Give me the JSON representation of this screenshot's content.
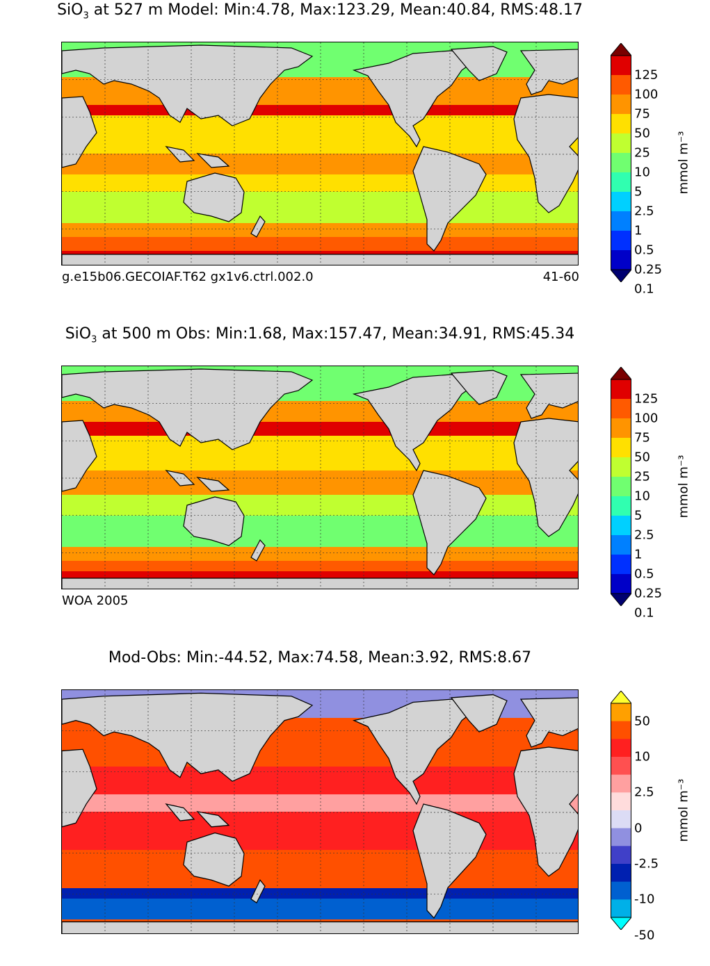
{
  "chart_data": [
    {
      "type": "heatmap",
      "title": "SiO3 at 527 m Model: Min:4.78, Max:123.29, Mean:40.84, RMS:48.17",
      "title_parts": {
        "pre": "SiO",
        "sub": "3",
        "post": " at 527 m Model: Min:4.78, Max:123.29, Mean:40.84, RMS:48.17"
      },
      "footer_left": "g.e15b06.GECOIAF.T62 gx1v6.ctrl.002.0",
      "footer_right": "41-60",
      "colorbar": {
        "label": "mmol m⁻³",
        "ticks": [
          "125",
          "100",
          "75",
          "50",
          "25",
          "10",
          "5",
          "2.5",
          "1",
          "0.5",
          "0.25",
          "0.1"
        ],
        "colors": [
          "#7a0000",
          "#e00000",
          "#ff5a00",
          "#ff9400",
          "#ffe000",
          "#c0ff30",
          "#70ff70",
          "#30ffb0",
          "#00d0ff",
          "#0080ff",
          "#0030ff",
          "#0000c8",
          "#000070"
        ]
      }
    },
    {
      "type": "heatmap",
      "title": "SiO3 at 500 m Obs: Min:1.68, Max:157.47, Mean:34.91, RMS:45.34",
      "title_parts": {
        "pre": "SiO",
        "sub": "3",
        "post": " at 500 m Obs: Min:1.68, Max:157.47, Mean:34.91, RMS:45.34"
      },
      "footer_left": "WOA 2005",
      "footer_right": "",
      "colorbar": {
        "label": "mmol m⁻³",
        "ticks": [
          "125",
          "100",
          "75",
          "50",
          "25",
          "10",
          "5",
          "2.5",
          "1",
          "0.5",
          "0.25",
          "0.1"
        ],
        "colors": [
          "#7a0000",
          "#e00000",
          "#ff5a00",
          "#ff9400",
          "#ffe000",
          "#c0ff30",
          "#70ff70",
          "#30ffb0",
          "#00d0ff",
          "#0080ff",
          "#0030ff",
          "#0000c8",
          "#000070"
        ]
      }
    },
    {
      "type": "heatmap",
      "title": "Mod-Obs: Min:-44.52, Max:74.58, Mean:3.92, RMS:8.67",
      "title_parts": {
        "pre": "Mod-Obs: Min:-44.52, Max:74.58, Mean:3.92, RMS:8.67",
        "sub": "",
        "post": ""
      },
      "footer_left": "",
      "footer_right": "",
      "colorbar": {
        "label": "mmol m⁻³",
        "ticks": [
          "50",
          "10",
          "2.5",
          "0",
          "-2.5",
          "-10",
          "-50"
        ],
        "colors": [
          "#ffff30",
          "#ffa000",
          "#ff5000",
          "#ff2020",
          "#ff5050",
          "#ffa0a0",
          "#ffdcdc",
          "#dcdcf5",
          "#9090e0",
          "#4040c8",
          "#0020b0",
          "#0060d0",
          "#00b0e8",
          "#00ffff"
        ]
      }
    }
  ]
}
